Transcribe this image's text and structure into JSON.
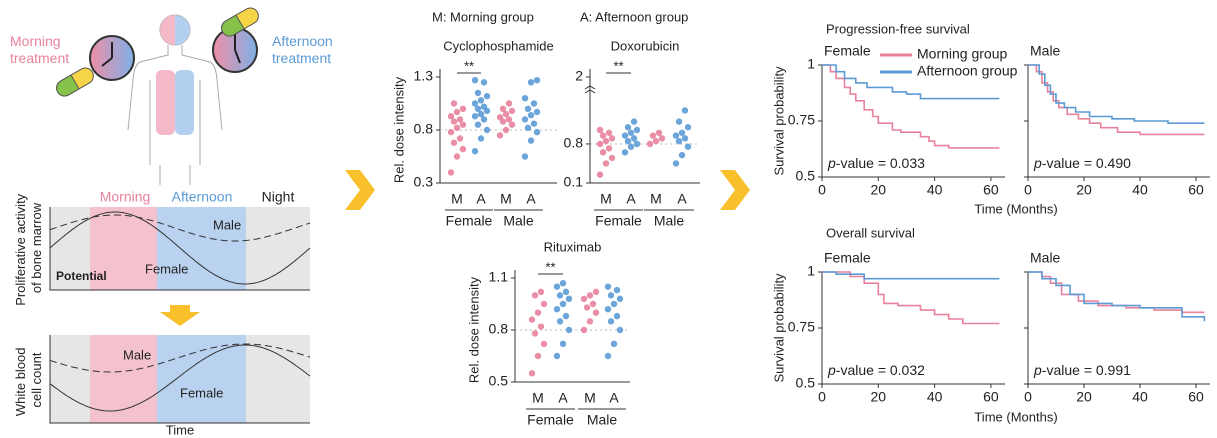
{
  "illustration": {
    "morning_treatment": [
      "Morning",
      "treatment"
    ],
    "afternoon_treatment": [
      "Afternoon",
      "treatment"
    ],
    "phases": [
      "Morning",
      "Afternoon",
      "Night"
    ],
    "bone_marrow_ylabel": [
      "Proliferative activity",
      "of bone marrow"
    ],
    "bone_marrow_male": "Male",
    "bone_marrow_female": "Female",
    "potential": "Potential",
    "wbc_ylabel": [
      "White blood",
      "cell count"
    ],
    "wbc_male": "Male",
    "wbc_female": "Female",
    "time": "Time"
  },
  "header": {
    "morning_group": "M: Morning group",
    "afternoon_group": "A: Afternoon group"
  },
  "sections": [
    {
      "title": "Progression-free survival",
      "xlabel": "Time (Months)",
      "ylabel": "Survival probability"
    },
    {
      "title": "Overall survival",
      "xlabel": "Time (Months)",
      "ylabel": "Survival probability"
    }
  ],
  "chart_data": [
    {
      "type": "strip",
      "title": "Cyclophosphamide",
      "ylabel": "Rel. dose intensity",
      "categories": [
        "M",
        "A",
        "M",
        "A"
      ],
      "groups": [
        "Female",
        "Male"
      ],
      "colors": [
        "#e8829c",
        "#5b9bd5",
        "#e8829c",
        "#5b9bd5"
      ],
      "values": [
        [
          0.4,
          0.55,
          0.62,
          0.68,
          0.72,
          0.78,
          0.82,
          0.85,
          0.88,
          0.9,
          0.93,
          0.97,
          1.0,
          1.05
        ],
        [
          0.6,
          0.72,
          0.8,
          0.85,
          0.9,
          0.93,
          0.95,
          0.98,
          1.0,
          1.02,
          1.05,
          1.08,
          1.12,
          1.15,
          1.25,
          1.27
        ],
        [
          0.75,
          0.8,
          0.85,
          0.88,
          0.9,
          0.92,
          0.95,
          0.98,
          1.0,
          1.05
        ],
        [
          0.55,
          0.7,
          0.78,
          0.82,
          0.86,
          0.9,
          0.94,
          0.97,
          1.0,
          1.05,
          1.1,
          1.25,
          1.27
        ]
      ],
      "ylim": [
        0.3,
        1.3
      ],
      "yticks": [
        0.3,
        0.8,
        1.3
      ],
      "reference_line": 0.8,
      "annotation": "**"
    },
    {
      "type": "strip",
      "title": "Doxorubicin",
      "categories": [
        "M",
        "A",
        "M",
        "A"
      ],
      "groups": [
        "Female",
        "Male"
      ],
      "colors": [
        "#e8829c",
        "#5b9bd5",
        "#e8829c",
        "#5b9bd5"
      ],
      "values": [
        [
          0.25,
          0.45,
          0.55,
          0.65,
          0.72,
          0.8,
          0.85,
          0.9,
          0.95,
          1.0,
          1.05
        ],
        [
          0.65,
          0.75,
          0.8,
          0.85,
          0.9,
          0.95,
          1.0,
          1.05,
          1.1,
          1.2
        ],
        [
          0.8,
          0.85,
          0.9,
          0.95,
          1.0
        ],
        [
          0.45,
          0.6,
          0.75,
          0.85,
          0.9,
          0.95,
          1.0,
          1.1,
          1.2,
          1.4
        ]
      ],
      "ylim": [
        0.1,
        2
      ],
      "yticks": [
        0.1,
        0.8,
        2
      ],
      "axis_break": true,
      "reference_line": 0.8,
      "annotation": "**"
    },
    {
      "type": "strip",
      "title": "Rituximab",
      "ylabel": "Rel. dose intensity",
      "categories": [
        "M",
        "A",
        "M",
        "A"
      ],
      "groups": [
        "Female",
        "Male"
      ],
      "colors": [
        "#e8829c",
        "#5b9bd5",
        "#e8829c",
        "#5b9bd5"
      ],
      "values": [
        [
          0.55,
          0.65,
          0.72,
          0.78,
          0.82,
          0.86,
          0.9,
          0.95,
          1.0,
          1.02
        ],
        [
          0.65,
          0.72,
          0.8,
          0.85,
          0.88,
          0.92,
          0.95,
          0.98,
          1.0,
          1.02,
          1.05,
          1.07
        ],
        [
          0.8,
          0.85,
          0.9,
          0.93,
          0.95,
          0.98,
          1.0,
          1.02
        ],
        [
          0.65,
          0.72,
          0.8,
          0.85,
          0.88,
          0.92,
          0.95,
          0.98,
          1.0,
          1.03,
          1.05
        ]
      ],
      "ylim": [
        0.5,
        1.1
      ],
      "yticks": [
        0.5,
        0.8,
        1.1
      ],
      "reference_line": 0.8,
      "annotation": "**"
    },
    {
      "type": "step",
      "title": "Female",
      "xlim": [
        0,
        65
      ],
      "xticks": [
        0,
        20,
        40,
        60
      ],
      "ylim": [
        0.5,
        1
      ],
      "yticks": [
        0.5,
        0.75,
        1
      ],
      "show_ytick_labels": true,
      "legend": true,
      "series": [
        {
          "name": "Morning group",
          "color": "#e8829c",
          "x": [
            0,
            3,
            5,
            8,
            10,
            12,
            15,
            18,
            20,
            25,
            28,
            35,
            38,
            40,
            45,
            63
          ],
          "values": [
            1,
            0.97,
            0.94,
            0.9,
            0.87,
            0.84,
            0.8,
            0.77,
            0.74,
            0.71,
            0.7,
            0.68,
            0.66,
            0.64,
            0.63,
            0.63
          ]
        },
        {
          "name": "Afternoon group",
          "color": "#5b9bd5",
          "x": [
            0,
            5,
            8,
            12,
            16,
            25,
            30,
            35,
            63
          ],
          "values": [
            1,
            0.97,
            0.94,
            0.92,
            0.9,
            0.88,
            0.87,
            0.85,
            0.85
          ]
        }
      ],
      "annotation": {
        "italic": "p",
        "text": "-value = 0.033"
      }
    },
    {
      "type": "step",
      "title": "Male",
      "xlim": [
        0,
        65
      ],
      "xticks": [
        0,
        20,
        40,
        60
      ],
      "ylim": [
        0.5,
        1
      ],
      "yticks": [
        0.5,
        0.75,
        1
      ],
      "show_ytick_labels": false,
      "legend": false,
      "series": [
        {
          "name": "Morning group",
          "color": "#e8829c",
          "x": [
            0,
            3,
            5,
            7,
            9,
            11,
            14,
            18,
            22,
            26,
            32,
            40,
            63
          ],
          "values": [
            1,
            0.97,
            0.92,
            0.88,
            0.84,
            0.81,
            0.78,
            0.76,
            0.74,
            0.72,
            0.7,
            0.69,
            0.69
          ]
        },
        {
          "name": "Afternoon group",
          "color": "#5b9bd5",
          "x": [
            0,
            4,
            6,
            8,
            10,
            13,
            17,
            22,
            30,
            38,
            50,
            63
          ],
          "values": [
            1,
            0.96,
            0.91,
            0.87,
            0.83,
            0.81,
            0.79,
            0.77,
            0.76,
            0.75,
            0.74,
            0.74
          ]
        }
      ],
      "annotation": {
        "italic": "p",
        "text": "-value = 0.490"
      }
    },
    {
      "type": "step",
      "title": "Female",
      "xlim": [
        0,
        65
      ],
      "xticks": [
        0,
        20,
        40,
        60
      ],
      "ylim": [
        0.5,
        1
      ],
      "yticks": [
        0.5,
        0.75,
        1
      ],
      "show_ytick_labels": true,
      "legend": false,
      "series": [
        {
          "name": "Morning group",
          "color": "#e8829c",
          "x": [
            0,
            10,
            15,
            20,
            22,
            27,
            35,
            40,
            45,
            50,
            63
          ],
          "values": [
            1,
            0.98,
            0.95,
            0.9,
            0.86,
            0.85,
            0.83,
            0.81,
            0.79,
            0.77,
            0.77
          ]
        },
        {
          "name": "Afternoon group",
          "color": "#5b9bd5",
          "x": [
            0,
            5,
            15,
            63
          ],
          "values": [
            1,
            0.99,
            0.97,
            0.97
          ]
        }
      ],
      "annotation": {
        "italic": "p",
        "text": "-value = 0.032"
      }
    },
    {
      "type": "step",
      "title": "Male",
      "xlim": [
        0,
        65
      ],
      "xticks": [
        0,
        20,
        40,
        60
      ],
      "ylim": [
        0.5,
        1
      ],
      "yticks": [
        0.5,
        0.75,
        1
      ],
      "show_ytick_labels": false,
      "legend": false,
      "series": [
        {
          "name": "Morning group",
          "color": "#e8829c",
          "x": [
            0,
            5,
            8,
            12,
            18,
            25,
            35,
            45,
            55,
            63
          ],
          "values": [
            1,
            0.98,
            0.95,
            0.9,
            0.87,
            0.85,
            0.84,
            0.83,
            0.82,
            0.82
          ]
        },
        {
          "name": "Afternoon group",
          "color": "#5b9bd5",
          "x": [
            0,
            5,
            10,
            15,
            20,
            30,
            40,
            55,
            63
          ],
          "values": [
            1,
            0.97,
            0.94,
            0.9,
            0.86,
            0.85,
            0.84,
            0.8,
            0.78
          ]
        }
      ],
      "annotation": {
        "italic": "p",
        "text": "-value = 0.991"
      }
    }
  ]
}
